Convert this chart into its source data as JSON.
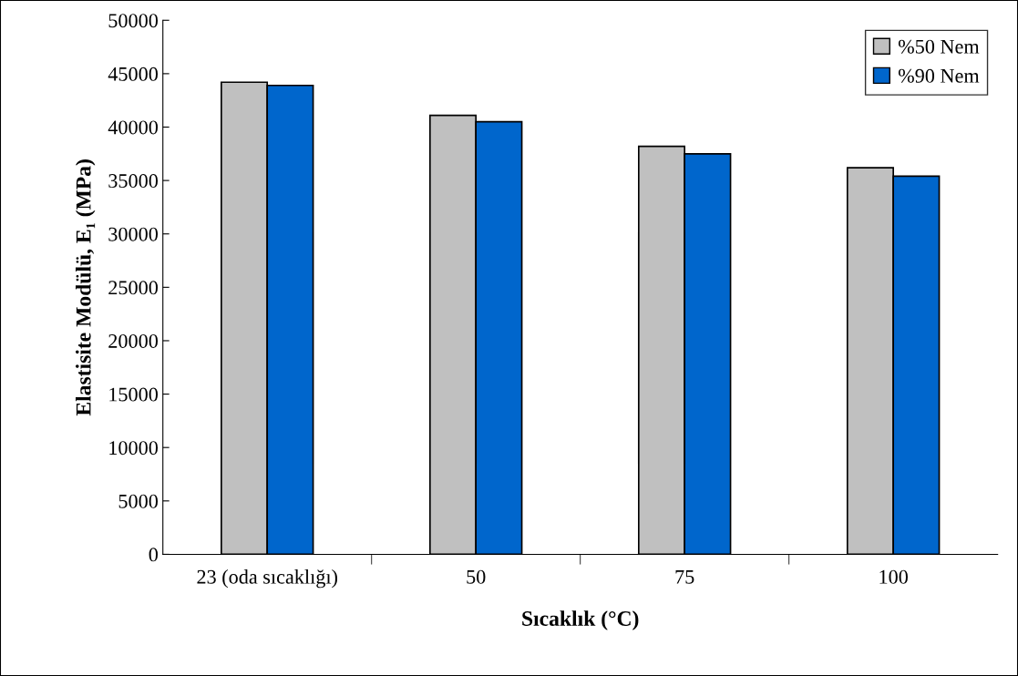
{
  "chart_data": {
    "type": "bar",
    "xlabel": "Sıcaklık (°C)",
    "ylabel": "Elastisite Modülü, E₁ (MPa)",
    "categories": [
      "23 (oda sıcaklığı)",
      "50",
      "75",
      "100"
    ],
    "series": [
      {
        "name": "%50 Nem",
        "color": "#c0c0c0",
        "values": [
          44200,
          41100,
          38200,
          36200
        ]
      },
      {
        "name": "%90 Nem",
        "color": "#0066cc",
        "values": [
          43900,
          40500,
          37500,
          35400
        ]
      }
    ],
    "ylim": [
      0,
      50000
    ],
    "yticks": [
      0,
      5000,
      10000,
      15000,
      20000,
      25000,
      30000,
      35000,
      40000,
      45000,
      50000
    ],
    "grid": false,
    "legend": "top right"
  }
}
